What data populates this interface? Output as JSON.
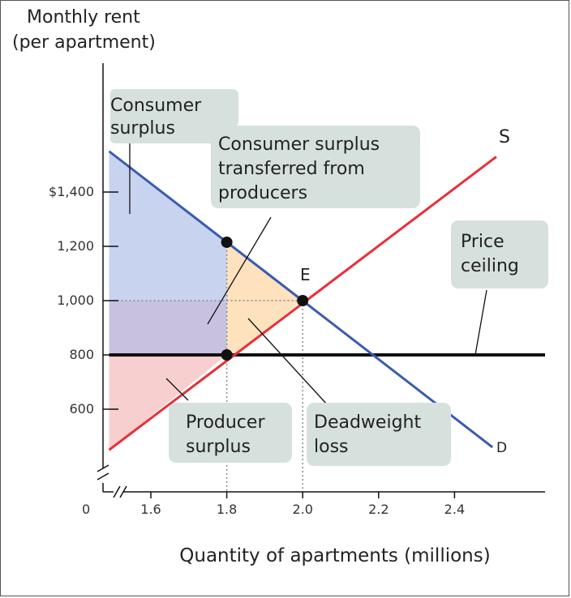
{
  "chart_data": {
    "type": "line",
    "ylabel_line1": "Monthly rent",
    "ylabel_line2": "(per apartment)",
    "xlabel": "Quantity of apartments (millions)",
    "origin_label": "0",
    "xlim": [
      1.5,
      2.6
    ],
    "ylim": [
      400,
      1650
    ],
    "x_ticks": [
      {
        "value": 1.6,
        "label": "1.6"
      },
      {
        "value": 1.8,
        "label": "1.8"
      },
      {
        "value": 2.0,
        "label": "2.0"
      },
      {
        "value": 2.2,
        "label": "2.2"
      },
      {
        "value": 2.4,
        "label": "2.4"
      }
    ],
    "y_ticks": [
      {
        "value": 600,
        "label": "600"
      },
      {
        "value": 800,
        "label": "800"
      },
      {
        "value": 1000,
        "label": "1,000"
      },
      {
        "value": 1200,
        "label": "1,200"
      },
      {
        "value": 1400,
        "label": "$1,400"
      }
    ],
    "series": [
      {
        "name": "D",
        "color": "#3a5bb0",
        "points": [
          [
            1.49,
            1550
          ],
          [
            2.5,
            460
          ]
        ]
      },
      {
        "name": "S",
        "color": "#e8303a",
        "points": [
          [
            1.49,
            450
          ],
          [
            2.51,
            1530
          ]
        ]
      },
      {
        "name": "Price ceiling",
        "color": "#111111",
        "points": [
          [
            1.49,
            800
          ],
          [
            2.6,
            800
          ]
        ]
      }
    ],
    "points": [
      {
        "name": "E",
        "x": 2.0,
        "y": 1000
      },
      {
        "name": "",
        "x": 1.8,
        "y": 1215
      },
      {
        "name": "",
        "x": 1.8,
        "y": 800
      }
    ],
    "regions": {
      "consumer_surplus_color": "#c8d3ef",
      "transferred_color": "#c8c2e0",
      "producer_surplus_color": "#f8cfcf",
      "deadweight_upper_color": "#fde2bd",
      "deadweight_lower_color": "#fde2bd"
    },
    "annotations": {
      "consumer_surplus": [
        "Consumer",
        "surplus"
      ],
      "transferred": [
        "Consumer surplus",
        "transferred from",
        "producers"
      ],
      "price_ceiling": [
        "Price",
        "ceiling"
      ],
      "producer_surplus": [
        "Producer",
        "surplus"
      ],
      "deadweight_loss": [
        "Deadweight",
        "loss"
      ],
      "label_bg": "#d6e1dd"
    }
  }
}
